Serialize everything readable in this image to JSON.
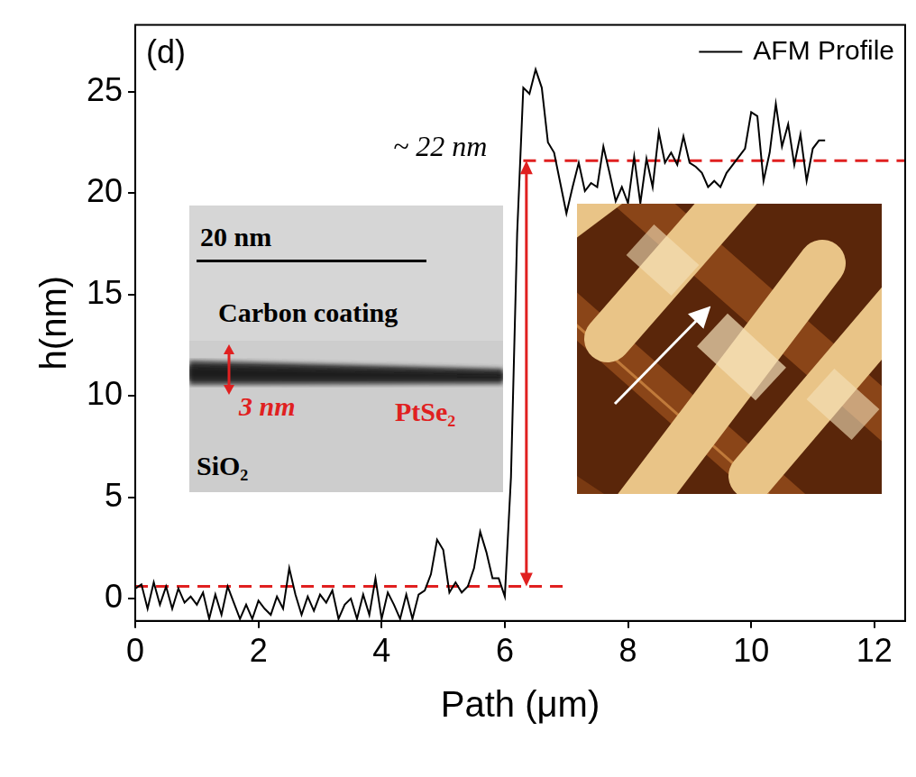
{
  "chart_data": {
    "type": "line",
    "panel_label": "(d)",
    "x_label": "Path (μm)",
    "y_label": "h(nm)",
    "xlim": [
      0,
      12.5
    ],
    "xticks": [
      0,
      2,
      4,
      6,
      8,
      10,
      12
    ],
    "ylim": [
      -1.1,
      28.3
    ],
    "yticks": [
      0,
      5,
      10,
      15,
      20,
      25
    ],
    "grid": false,
    "legend": "upper right",
    "series": [
      {
        "name": "AFM Profile",
        "color": "#000000",
        "line_style": "solid",
        "x": [
          0.0,
          0.1,
          0.2,
          0.3,
          0.4,
          0.5,
          0.6,
          0.7,
          0.8,
          0.9,
          1.0,
          1.1,
          1.2,
          1.3,
          1.4,
          1.5,
          1.6,
          1.7,
          1.8,
          1.9,
          2.0,
          2.1,
          2.2,
          2.3,
          2.4,
          2.5,
          2.6,
          2.7,
          2.8,
          2.9,
          3.0,
          3.1,
          3.2,
          3.3,
          3.4,
          3.5,
          3.6,
          3.7,
          3.8,
          3.9,
          4.0,
          4.1,
          4.2,
          4.3,
          4.4,
          4.5,
          4.6,
          4.7,
          4.8,
          4.9,
          5.0,
          5.1,
          5.2,
          5.3,
          5.4,
          5.5,
          5.6,
          5.7,
          5.8,
          5.9,
          6.0,
          6.1,
          6.2,
          6.3,
          6.4,
          6.5,
          6.6,
          6.7,
          6.8,
          6.9,
          7.0,
          7.1,
          7.2,
          7.3,
          7.4,
          7.5,
          7.6,
          7.7,
          7.8,
          7.9,
          8.0,
          8.1,
          8.2,
          8.3,
          8.4,
          8.5,
          8.6,
          8.7,
          8.8,
          8.9,
          9.0,
          9.1,
          9.2,
          9.3,
          9.4,
          9.5,
          9.6,
          9.7,
          9.8,
          9.9,
          10.0,
          10.1,
          10.2,
          10.3,
          10.4,
          10.5,
          10.6,
          10.7,
          10.8,
          10.9,
          11.0,
          11.1,
          11.2
        ],
        "values": [
          0.5,
          0.7,
          -0.5,
          0.8,
          -0.3,
          0.6,
          -0.5,
          0.5,
          -0.2,
          0.1,
          -0.3,
          0.3,
          -1.0,
          0.2,
          -0.8,
          0.6,
          -0.2,
          -1.0,
          -0.3,
          -1.0,
          -0.1,
          -0.5,
          -0.8,
          0.1,
          -0.5,
          1.5,
          0.2,
          -0.8,
          0.1,
          -0.6,
          0.2,
          -0.2,
          0.4,
          -1.0,
          -0.3,
          0.0,
          -1.0,
          0.2,
          -0.8,
          1.0,
          -1.0,
          0.3,
          -0.3,
          -1.0,
          0.2,
          -1.0,
          0.2,
          0.4,
          1.2,
          2.9,
          2.4,
          0.3,
          0.8,
          0.3,
          0.6,
          1.5,
          3.3,
          2.3,
          1.0,
          1.0,
          0.1,
          6.0,
          18.0,
          25.2,
          24.9,
          26.1,
          25.2,
          22.5,
          22.0,
          20.5,
          19.0,
          20.3,
          21.5,
          20.1,
          20.5,
          20.3,
          22.3,
          21.0,
          19.6,
          20.3,
          19.5,
          21.8,
          19.5,
          21.7,
          20.3,
          23.0,
          21.5,
          22.0,
          21.4,
          22.8,
          21.5,
          21.3,
          21.0,
          20.3,
          20.6,
          20.3,
          21.0,
          21.4,
          21.8,
          22.2,
          24.0,
          23.8,
          20.6,
          22.0,
          24.4,
          22.3,
          23.4,
          21.4,
          22.9,
          20.6,
          22.2,
          22.6,
          22.6
        ]
      }
    ],
    "reference_lines": [
      {
        "y": 0.6,
        "x": [
          0,
          7
        ],
        "color": "#e02020",
        "line_style": "dashed"
      },
      {
        "y": 21.6,
        "x": [
          6.3,
          12.5
        ],
        "color": "#e02020",
        "line_style": "dashed",
        "label": "~ 22 nm"
      }
    ],
    "arrow": {
      "x": 6.35,
      "y": [
        0.6,
        21.6
      ],
      "color": "#e02020"
    },
    "inset_texts": {
      "scale_bar": "20 nm",
      "upper_layer": "Carbon coating",
      "thickness": "3 nm",
      "film": "PtSe₂",
      "substrate": "SiO₂"
    }
  }
}
